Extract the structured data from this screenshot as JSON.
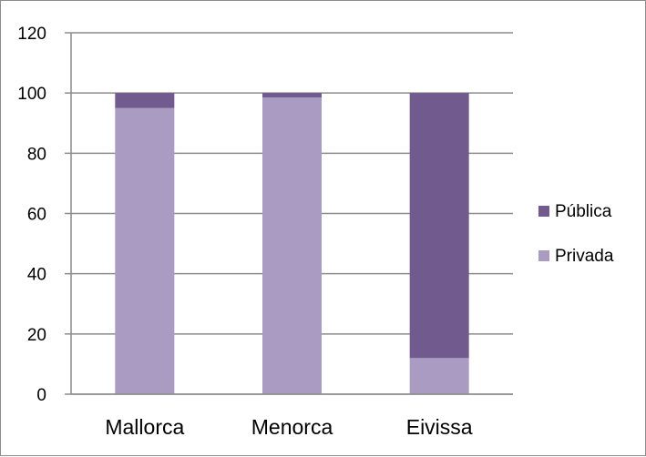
{
  "chart_data": {
    "type": "bar",
    "stacked": true,
    "categories": [
      "Mallorca",
      "Menorca",
      "Eivissa"
    ],
    "series": [
      {
        "name": "Privada",
        "values": [
          95,
          98.5,
          12
        ],
        "color": "#a99bc1"
      },
      {
        "name": "Pública",
        "values": [
          5,
          1.5,
          88
        ],
        "color": "#715a8d"
      }
    ],
    "title": "",
    "xlabel": "",
    "ylabel": "",
    "ylim": [
      0,
      120
    ],
    "yticks": [
      "0",
      "20",
      "40",
      "60",
      "80",
      "100",
      "120"
    ],
    "grid": true,
    "legend_position": "right",
    "legend_order": [
      "Pública",
      "Privada"
    ]
  }
}
